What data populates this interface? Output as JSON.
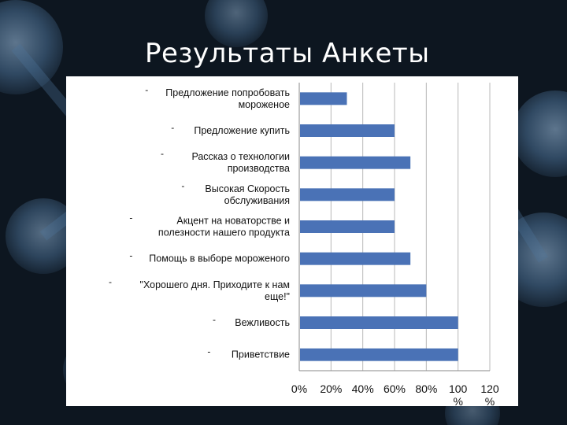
{
  "slide": {
    "title": "Результаты Анкеты"
  },
  "colors": {
    "bar": "#4a72b6",
    "grid": "#b8b8b8",
    "panel": "#ffffff",
    "background": "#0d1620"
  },
  "chart_data": {
    "type": "bar",
    "orientation": "horizontal",
    "categories": [
      [
        "Предложение попробовать",
        "мороженое"
      ],
      [
        "Предложение купить"
      ],
      [
        "Рассказ о технологии",
        "производства"
      ],
      [
        "Высокая Скорость",
        "обслуживания"
      ],
      [
        "Акцент на новаторстве и",
        "полезности нашего продукта"
      ],
      [
        "Помощь в выборе мороженого"
      ],
      [
        "\"Хорошего дня. Приходите к нам",
        "еще!\""
      ],
      [
        "Вежливость"
      ],
      [
        "Приветствие"
      ]
    ],
    "values": [
      30,
      60,
      70,
      60,
      60,
      70,
      80,
      100,
      100
    ],
    "xlim": [
      0,
      120
    ],
    "x_ticks": [
      [
        "0%"
      ],
      [
        "20%"
      ],
      [
        "40%"
      ],
      [
        "60%"
      ],
      [
        "80%"
      ],
      [
        "100",
        "%"
      ],
      [
        "120",
        "%"
      ]
    ],
    "grid": "vertical",
    "legend": "none"
  }
}
